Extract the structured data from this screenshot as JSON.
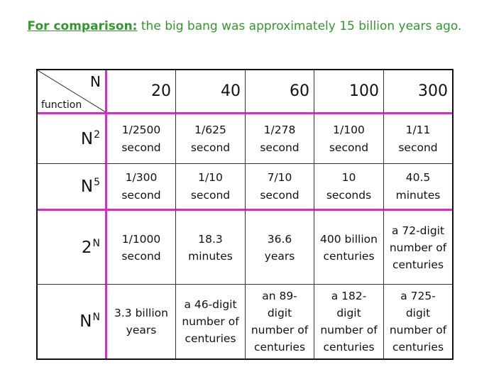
{
  "caption": {
    "lead": "For comparison:",
    "text": " the big bang was approximately 15 billion years ago."
  },
  "table": {
    "corner": {
      "column_label": "N",
      "row_label": "function"
    },
    "columns": [
      "20",
      "40",
      "60",
      "100",
      "300"
    ],
    "rows": [
      {
        "base": "N",
        "exponent": "2",
        "cells": [
          "1/2500\nsecond",
          "1/625\nsecond",
          "1/278\nsecond",
          "1/100\nsecond",
          "1/11\nsecond"
        ]
      },
      {
        "base": "N",
        "exponent": "5",
        "cells": [
          "1/300\nsecond",
          "1/10\nsecond",
          "7/10\nsecond",
          "10\nseconds",
          "40.5\nminutes"
        ]
      },
      {
        "base": "2",
        "exponent": "N",
        "cells": [
          "1/1000\nsecond",
          "18.3\nminutes",
          "36.6\nyears",
          "400 billion\ncenturies",
          "a 72-digit\nnumber of\ncenturies"
        ]
      },
      {
        "base": "N",
        "exponent": "N",
        "cells": [
          "3.3 billion\nyears",
          "a 46-digit\nnumber of\ncenturies",
          "an 89-\ndigit\nnumber of\ncenturies",
          "a 182-\ndigit\nnumber of\ncenturies",
          "a 725-\ndigit\nnumber of\ncenturies"
        ]
      }
    ]
  },
  "colors": {
    "caption": "#2f9a2a",
    "separator": "#d430c8",
    "grid": "#333333"
  }
}
